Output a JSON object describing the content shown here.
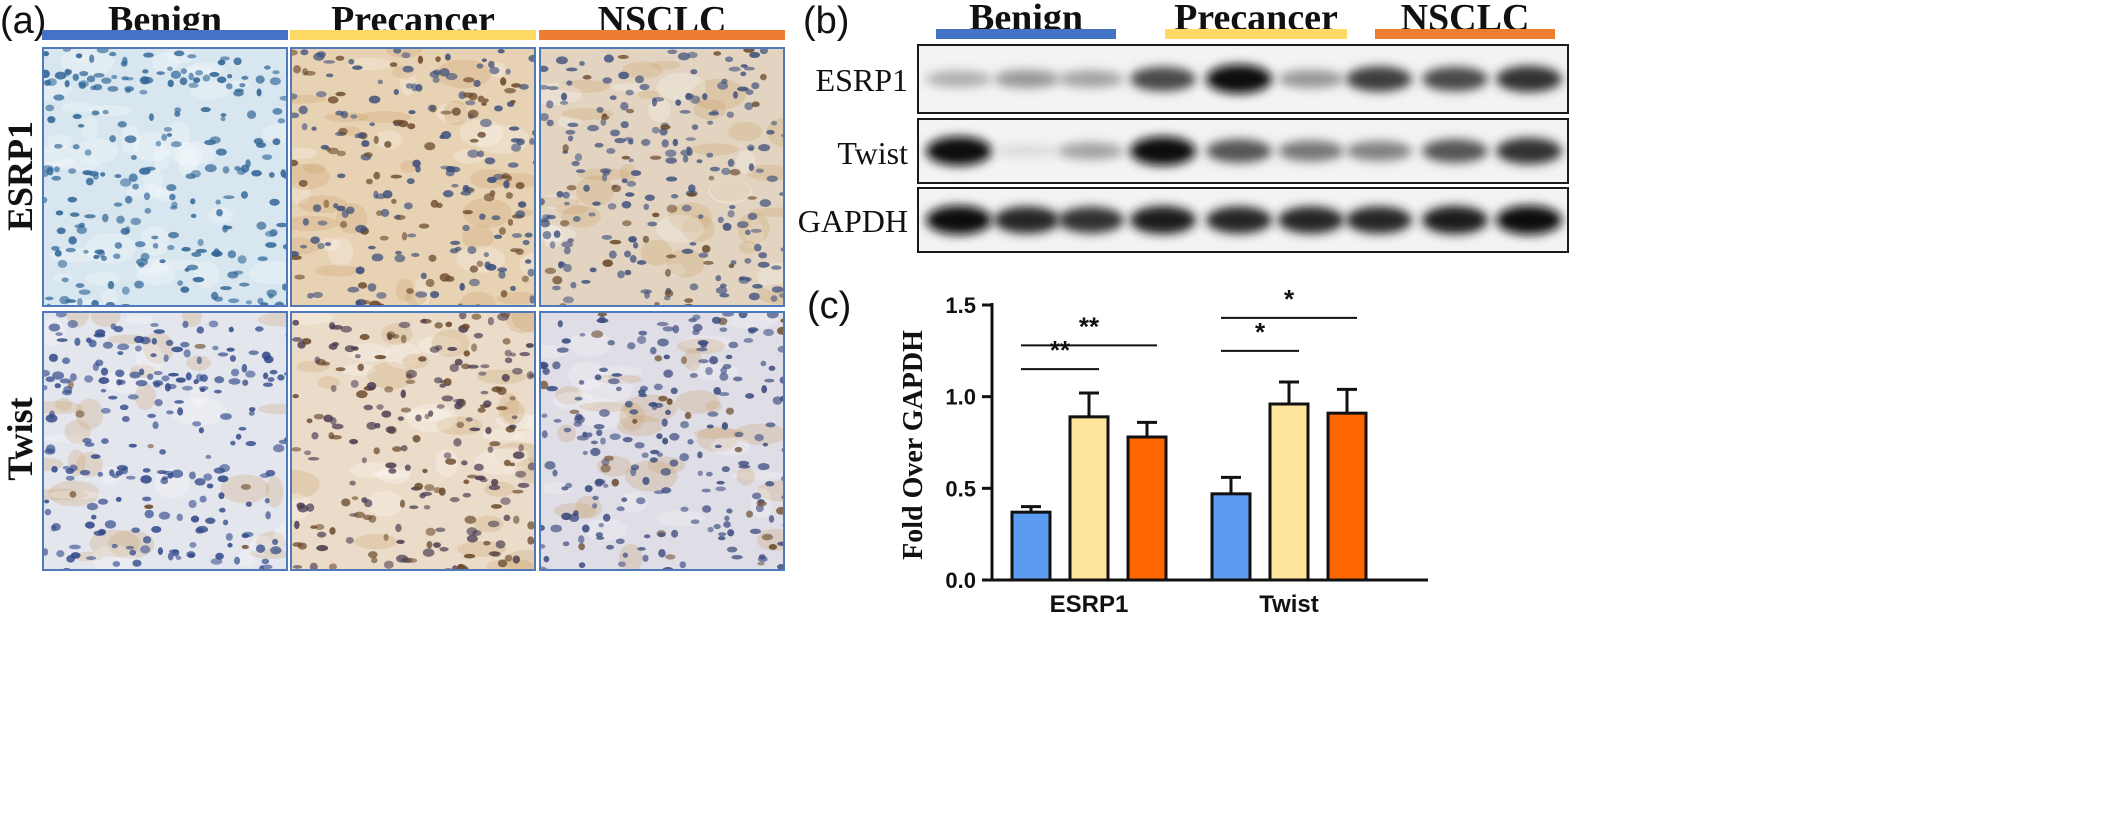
{
  "panel_a": {
    "letter": "(a)",
    "groups": [
      {
        "label": "Benign",
        "color": "#4472c4"
      },
      {
        "label": "Precancer",
        "color": "#ffd966"
      },
      {
        "label": "NSCLC",
        "color": "#ed7d31"
      }
    ],
    "rows": [
      "ESRP1",
      "Twist"
    ]
  },
  "panel_b": {
    "letter": "(b)",
    "groups": [
      {
        "label": "Benign",
        "color": "#4472c4"
      },
      {
        "label": "Precancer",
        "color": "#ffd966"
      },
      {
        "label": "NSCLC",
        "color": "#ed7d31"
      }
    ],
    "blots": [
      {
        "label": "ESRP1",
        "intensity": [
          0.25,
          0.35,
          0.3,
          0.7,
          0.95,
          0.35,
          0.75,
          0.7,
          0.8
        ]
      },
      {
        "label": "Twist",
        "intensity": [
          0.95,
          0.05,
          0.3,
          0.95,
          0.65,
          0.5,
          0.45,
          0.65,
          0.8
        ]
      },
      {
        "label": "GAPDH",
        "intensity": [
          0.95,
          0.85,
          0.8,
          0.9,
          0.85,
          0.85,
          0.85,
          0.9,
          0.95
        ]
      }
    ]
  },
  "panel_c": {
    "letter": "(c)",
    "chart_data": {
      "type": "bar",
      "categories": [
        "ESRP1",
        "Twist"
      ],
      "ylabel": "Fold Over GAPDH",
      "ylim": [
        0,
        1.5
      ],
      "yticks": [
        "0.0",
        "0.5",
        "1.0",
        "1.5"
      ],
      "series": [
        {
          "color": "#5b9bf0",
          "values": [
            0.37,
            0.47
          ],
          "errors": [
            0.03,
            0.09
          ]
        },
        {
          "color": "#fde49a",
          "values": [
            0.89,
            0.96
          ],
          "errors": [
            0.13,
            0.12
          ]
        },
        {
          "color": "#ff6600",
          "values": [
            0.78,
            0.91
          ],
          "errors": [
            0.08,
            0.13
          ]
        }
      ],
      "significance": [
        {
          "category": 0,
          "from": 0,
          "to": 1,
          "label": "**",
          "level": 1.15
        },
        {
          "category": 0,
          "from": 0,
          "to": 2,
          "label": "**",
          "level": 1.28
        },
        {
          "category": 1,
          "from": 0,
          "to": 1,
          "label": "*",
          "level": 1.25
        },
        {
          "category": 1,
          "from": 0,
          "to": 2,
          "label": "*",
          "level": 1.43
        }
      ]
    }
  }
}
